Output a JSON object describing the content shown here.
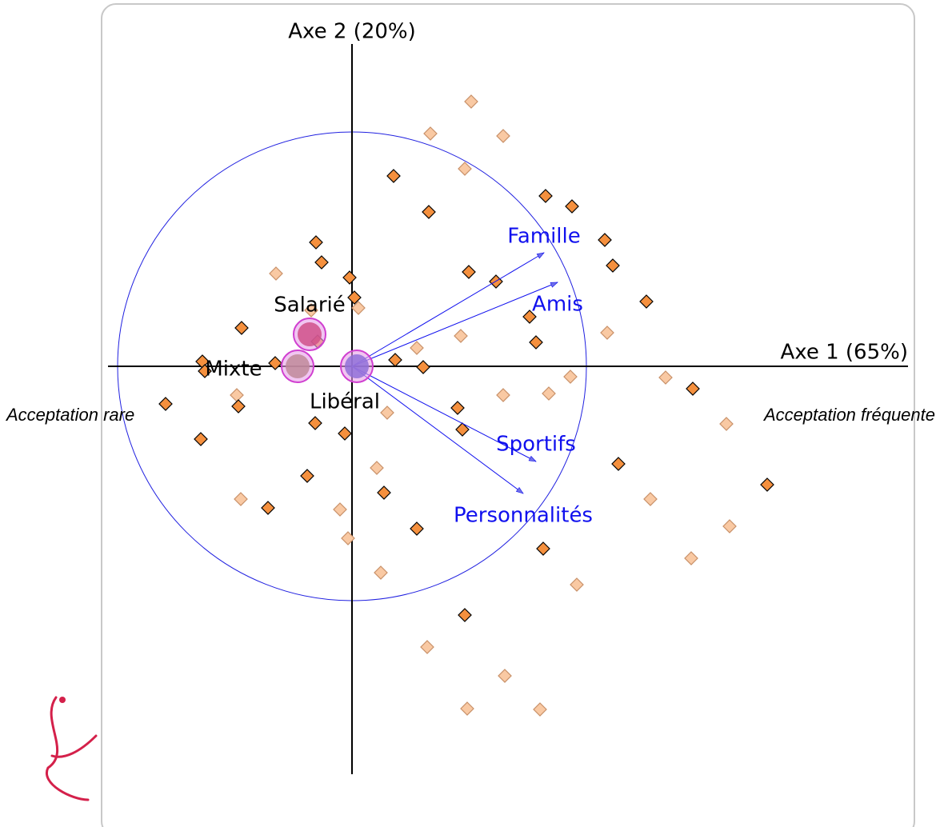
{
  "chart_data": {
    "type": "scatter",
    "x_label": "Axe 1 (65%)",
    "y_label": "Axe 2 (20%)",
    "left_annotation": "Acceptation rare",
    "right_annotation": "Acceptation fréquente",
    "xlim": [
      -305,
      695
    ],
    "ylim": [
      -510,
      403
    ],
    "correlation_circle_radius": 293,
    "circle_color": "#2020e0",
    "series": [
      {
        "color": "#f5903e",
        "stroke": "#000000",
        "x": [
          52,
          96,
          242,
          275,
          -45,
          316,
          326,
          -3,
          146,
          180,
          3,
          368,
          -138,
          222,
          230,
          -43,
          -187,
          -184,
          -96,
          54,
          89,
          426,
          -233,
          -142,
          132,
          138,
          -46,
          -9,
          -189,
          333,
          -56,
          40,
          -105,
          519,
          81,
          239,
          141,
          -38
        ],
        "y": [
          238,
          193,
          213,
          200,
          155,
          158,
          126,
          111,
          118,
          106,
          86,
          81,
          48,
          62,
          30,
          31,
          6,
          -6,
          4,
          8,
          -1,
          -28,
          -47,
          -50,
          -52,
          -79,
          -71,
          -84,
          -91,
          -122,
          -137,
          -158,
          -177,
          -148,
          -203,
          -228,
          -311,
          130
        ]
      },
      {
        "color": "#f9c9a3",
        "stroke": "#c89068",
        "x": [
          149,
          98,
          189,
          141,
          -95,
          -51,
          8,
          136,
          81,
          319,
          273,
          392,
          189,
          246,
          -144,
          44,
          468,
          31,
          -139,
          -15,
          373,
          472,
          -5,
          36,
          424,
          281,
          94,
          191,
          144,
          235
        ],
        "y": [
          331,
          291,
          288,
          247,
          116,
          70,
          73,
          38,
          23,
          42,
          -13,
          -14,
          -36,
          -34,
          -36,
          -58,
          -72,
          -127,
          -166,
          -179,
          -166,
          -200,
          -215,
          -258,
          -240,
          -273,
          -351,
          -387,
          -428,
          -429
        ]
      }
    ],
    "groups": {
      "labels": [
        "Salarié",
        "Mixte",
        "Libéral"
      ],
      "x": [
        -53,
        -68,
        6
      ],
      "y": [
        40,
        0,
        0
      ],
      "colors": [
        "#d0508a",
        "#c08a9a",
        "#9070d8"
      ],
      "ring_color": "#d040d0"
    },
    "variables": {
      "labels": [
        "Famille",
        "Amis",
        "Sportifs",
        "Personnalités"
      ],
      "x": [
        240,
        257,
        230,
        214
      ],
      "y": [
        142,
        105,
        -119,
        -159
      ],
      "color": "#1010ee"
    }
  }
}
